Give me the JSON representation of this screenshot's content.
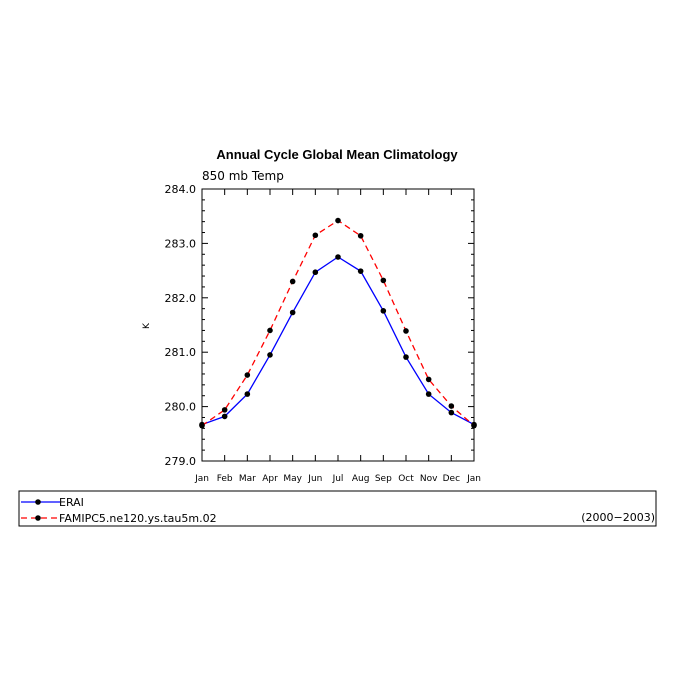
{
  "chart_data": {
    "type": "line",
    "title": "Annual Cycle Global Mean Climatology",
    "subtitle": "850 mb Temp",
    "xlabel": "",
    "ylabel": "K",
    "categories": [
      "Jan",
      "Feb",
      "Mar",
      "Apr",
      "May",
      "Jun",
      "Jul",
      "Aug",
      "Sep",
      "Oct",
      "Nov",
      "Dec",
      "Jan"
    ],
    "ylim": [
      279.0,
      284.0
    ],
    "yticks": [
      "279.0",
      "280.0",
      "281.0",
      "282.0",
      "283.0",
      "284.0"
    ],
    "legend_position": "bottom",
    "period": "(2000−2003)",
    "series": [
      {
        "name": "ERAI",
        "color": "#0000ff",
        "dash": "solid",
        "values": [
          279.67,
          279.82,
          280.23,
          280.95,
          281.73,
          282.47,
          282.75,
          282.49,
          281.76,
          280.91,
          280.23,
          279.89,
          279.67
        ]
      },
      {
        "name": "FAMIPC5.ne120.ys.tau5m.02",
        "color": "#ff0000",
        "dash": "dashed",
        "values": [
          279.65,
          279.94,
          280.58,
          281.4,
          282.3,
          283.15,
          283.42,
          283.14,
          282.32,
          281.39,
          280.5,
          280.01,
          279.65
        ]
      }
    ]
  }
}
